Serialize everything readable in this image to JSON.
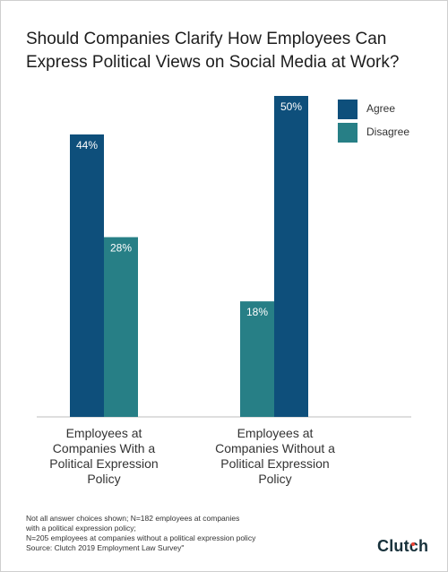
{
  "colors": {
    "agree": "#0e4f7b",
    "disagree": "#277f86",
    "axis": "#bdbdbd",
    "logo_accent": "#ef4335"
  },
  "title_lines": [
    "Should Companies Clarify How Employees Can",
    "Express Political Views on Social Media at Work?"
  ],
  "chart_data": {
    "type": "bar",
    "title": "Should Companies Clarify How Employees Can Express Political Views on Social Media at Work?",
    "categories": [
      "Employees at Companies With a Political Expression Policy",
      "Employees at Companies Without a Political Expression Policy"
    ],
    "category_label_lines": [
      [
        "Employees at",
        "Companies With a",
        "Political Expression",
        "Policy"
      ],
      [
        "Employees at",
        "Companies Without a",
        "Political Expression",
        "Policy"
      ]
    ],
    "series": [
      {
        "name": "Agree",
        "values": [
          44,
          50
        ],
        "labels": [
          "44%",
          "50%"
        ]
      },
      {
        "name": "Disagree",
        "values": [
          28,
          18
        ],
        "labels": [
          "28%",
          "18%"
        ]
      }
    ],
    "bar_order": [
      [
        "Agree",
        "Disagree"
      ],
      [
        "Disagree",
        "Agree"
      ]
    ],
    "ylim": [
      0,
      50
    ],
    "grid": false,
    "legend_position": "top-right",
    "xlabel": "",
    "ylabel": ""
  },
  "footnote_lines": [
    "Not all answer choices shown; N=182 employees at companies",
    "with a political expression policy;",
    "N=205 employees at companies without a political expression policy",
    "Source: Clutch 2019 Employment Law Survey\""
  ],
  "logo_text": "Clutch"
}
